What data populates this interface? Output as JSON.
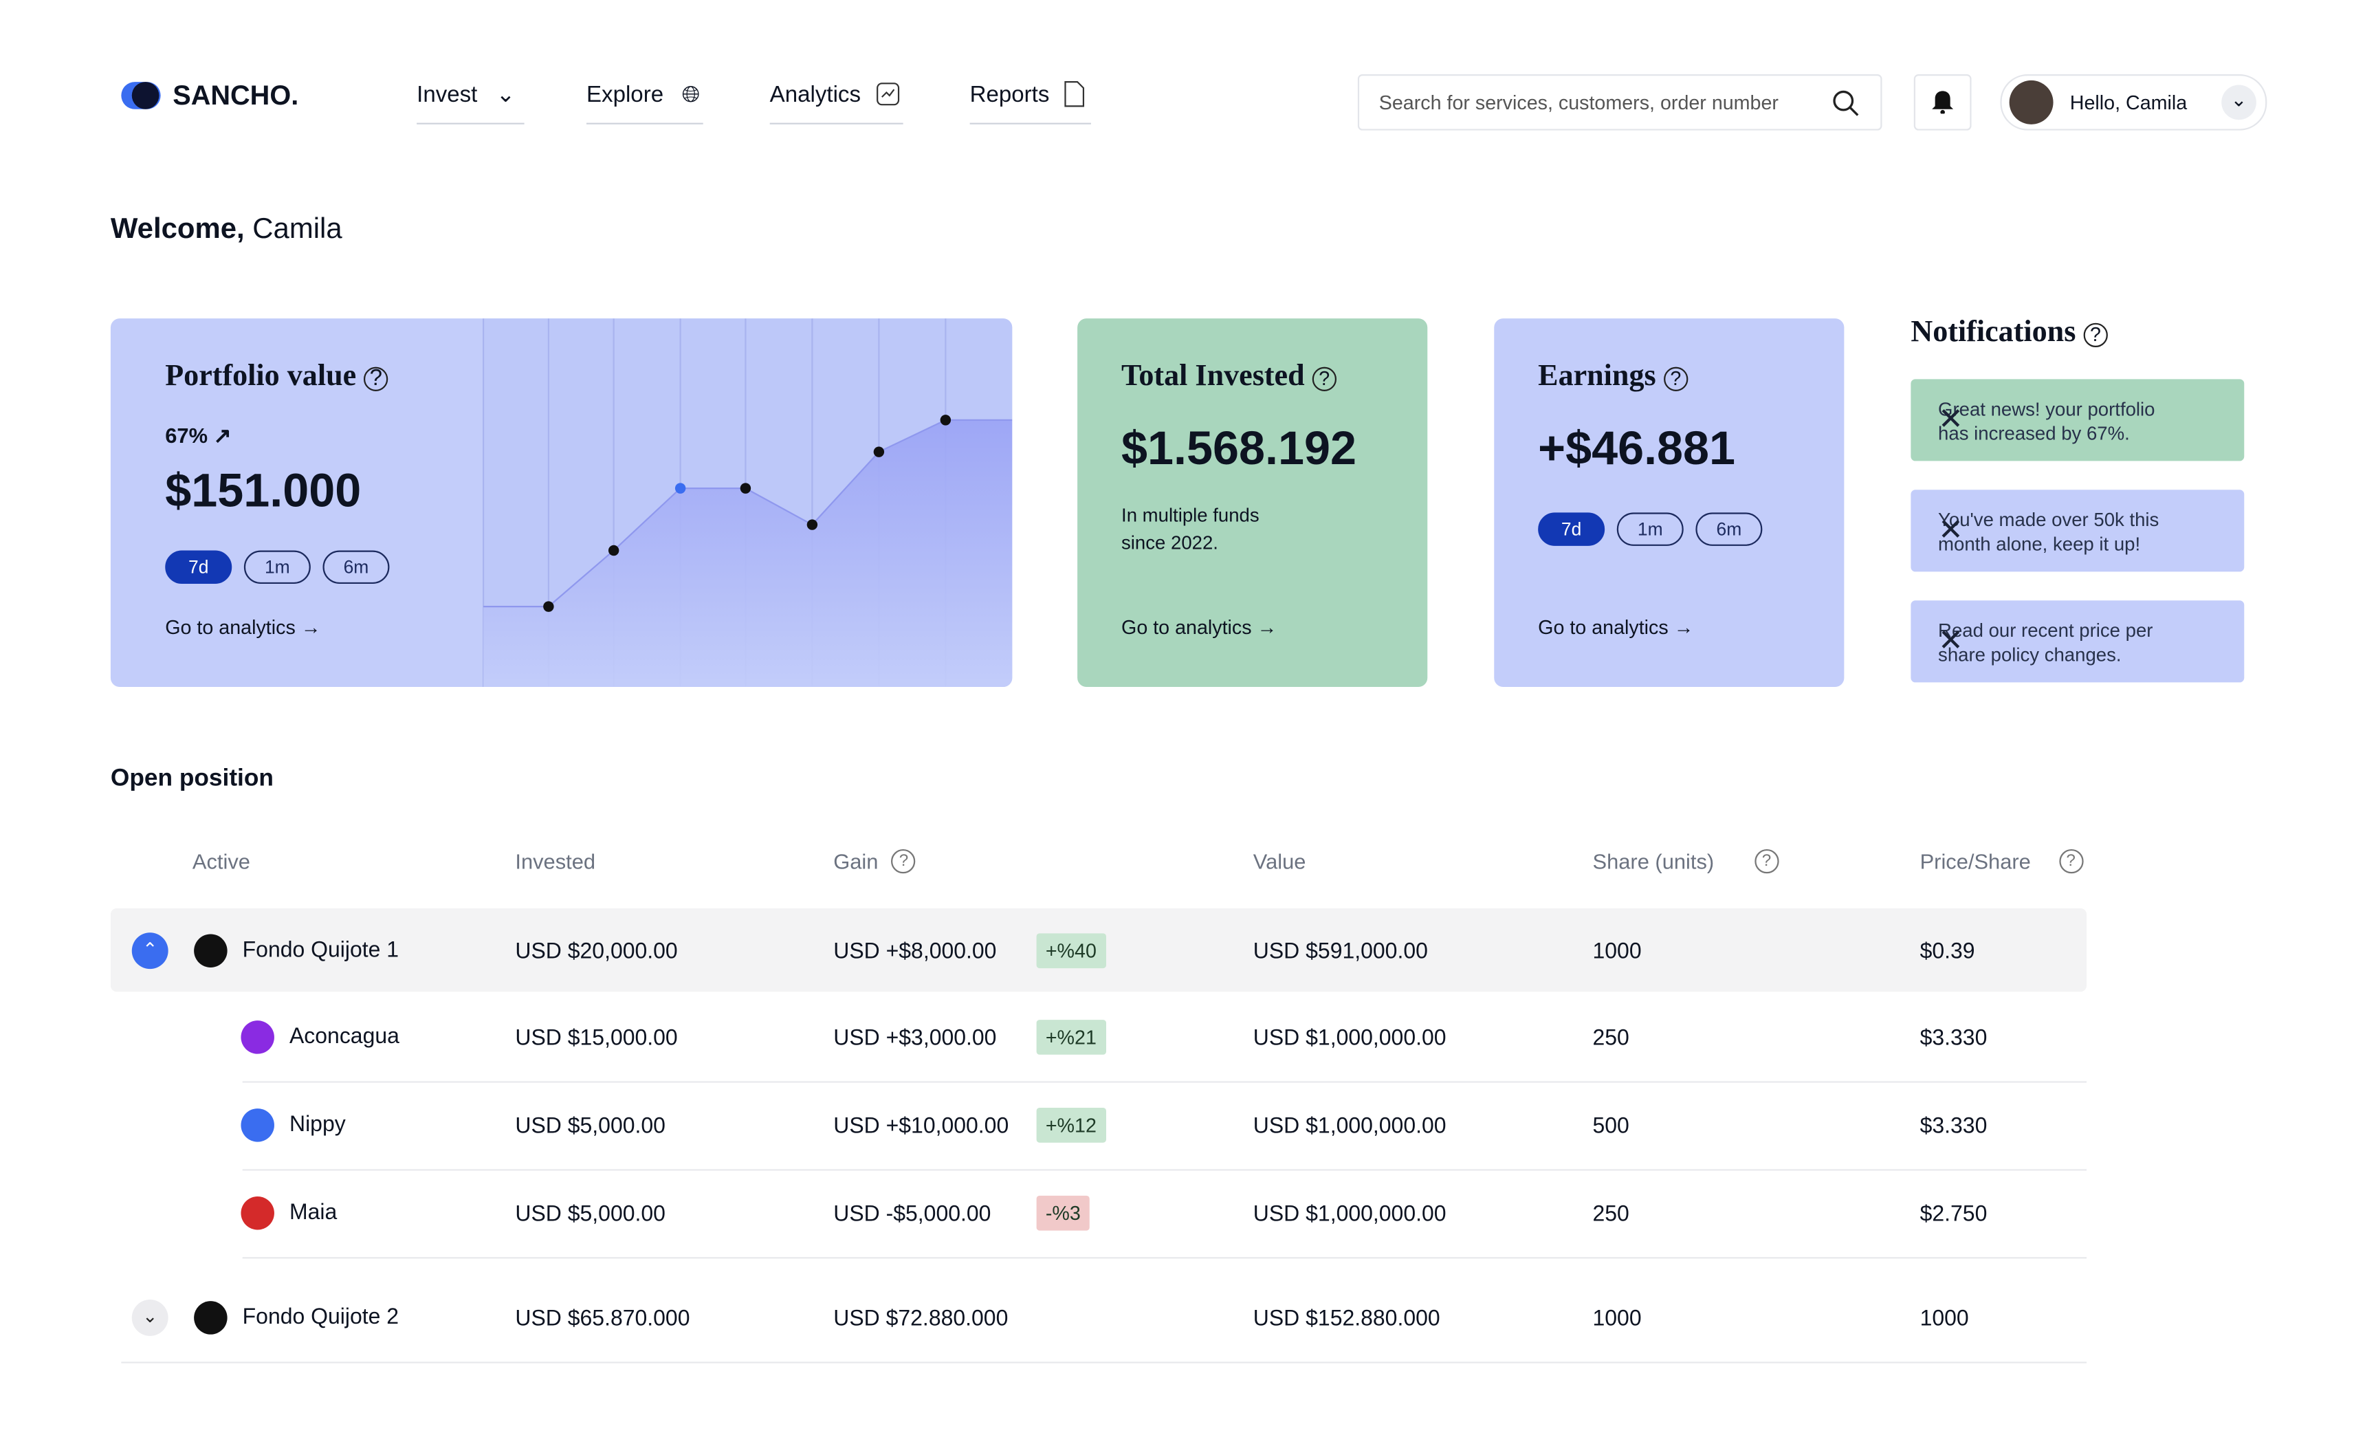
{
  "brand": "SANCHO.",
  "nav": [
    "Invest",
    "Explore",
    "Analytics",
    "Reports"
  ],
  "search_placeholder": "Search for services, customers, order number",
  "user": "Hello, Camila",
  "welcome": {
    "greeting": "Welcome,",
    "name": "Camila"
  },
  "cards": {
    "portfolio": {
      "title": "Portfolio value",
      "change": "67%",
      "value": "$151.000",
      "periods": [
        "7d",
        "1m",
        "6m"
      ],
      "link": "Go to analytics"
    },
    "invested": {
      "title": "Total Invested",
      "value": "$1.568.192",
      "note": "In multiple funds since 2022.",
      "link": "Go to analytics"
    },
    "earnings": {
      "title": "Earnings",
      "value": "+$46.881",
      "periods": [
        "7d",
        "1m",
        "6m"
      ],
      "link": "Go to analytics"
    }
  },
  "notifications": {
    "title": "Notifications",
    "items": [
      "Great news! your portfolio has increased by 67%.",
      "You've made over 50k this month alone, keep it up!",
      "Read our recent price per share policy changes."
    ]
  },
  "positions": {
    "title": "Open position",
    "columns": [
      "Active",
      "Invested",
      "Gain",
      "Value",
      "Share (units)",
      "Price/Share"
    ],
    "rows": [
      {
        "name": "Fondo Quijote 1",
        "invested": "USD $20,000.00",
        "gain": "USD +$8,000.00",
        "badge": "+%40",
        "value": "USD $591,000.00",
        "shares": "1000",
        "price": "$0.39"
      },
      {
        "name": "Aconcagua",
        "invested": "USD $15,000.00",
        "gain": "USD +$3,000.00",
        "badge": "+%21",
        "value": "USD $1,000,000.00",
        "shares": "250",
        "price": "$3.330"
      },
      {
        "name": "Nippy",
        "invested": "USD $5,000.00",
        "gain": "USD +$10,000.00",
        "badge": "+%12",
        "value": "USD $1,000,000.00",
        "shares": "500",
        "price": "$3.330"
      },
      {
        "name": "Maia",
        "invested": "USD $5,000.00",
        "gain": "USD -$5,000.00",
        "badge": "-%3",
        "value": "USD $1,000,000.00",
        "shares": "250",
        "price": "$2.750"
      },
      {
        "name": "Fondo Quijote 2",
        "invested": "USD $65.870.000",
        "gain": "USD $72.880.000",
        "value": "USD $152.880.000",
        "shares": "1000",
        "price": "1000"
      }
    ]
  }
}
